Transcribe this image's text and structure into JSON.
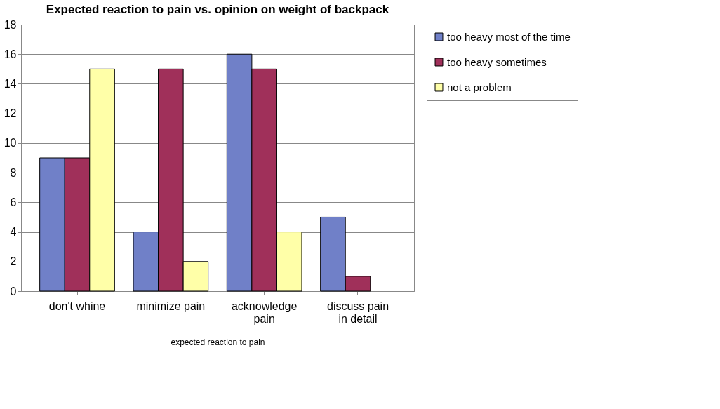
{
  "chart_data": {
    "type": "bar",
    "title": "Expected reaction to pain vs. opinion on weight of backpack",
    "xlabel": "expected reaction to pain",
    "categories": [
      "don't whine",
      "minimize pain",
      "acknowledge pain",
      "discuss pain in detail"
    ],
    "series": [
      {
        "name": "too heavy most of the time",
        "color": "#7080c8",
        "values": [
          9,
          4,
          16,
          5
        ]
      },
      {
        "name": "too heavy sometimes",
        "color": "#a0305a",
        "values": [
          9,
          15,
          15,
          1
        ]
      },
      {
        "name": "not a problem",
        "color": "#ffffa8",
        "values": [
          15,
          2,
          4,
          null
        ]
      }
    ],
    "ylim": [
      0,
      18
    ],
    "yticks": [
      0,
      2,
      4,
      6,
      8,
      10,
      12,
      14,
      16,
      18
    ],
    "grid": "y",
    "legend": "right"
  }
}
